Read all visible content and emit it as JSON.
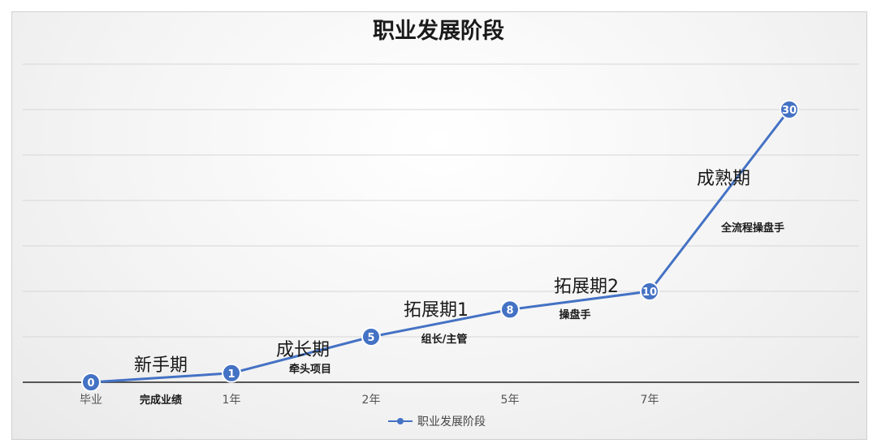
{
  "chart_data": {
    "type": "line",
    "title": "职业发展阶段",
    "x": [
      "毕业",
      "1年",
      "2年",
      "5年",
      "7年",
      ""
    ],
    "series": [
      {
        "name": "职业发展阶段",
        "values": [
          0,
          1,
          5,
          8,
          10,
          30
        ],
        "color": "#4472c4"
      }
    ],
    "data_labels": [
      "0",
      "1",
      "5",
      "8",
      "10",
      "30"
    ],
    "ylim": [
      0,
      35
    ],
    "grid": true,
    "legend": "bottom",
    "stages": [
      {
        "name": "新手期",
        "desc": "完成业绩"
      },
      {
        "name": "成长期",
        "desc": "牵头项目"
      },
      {
        "name": "拓展期1",
        "desc": "组长/主管"
      },
      {
        "name": "拓展期2",
        "desc": "操盘手"
      },
      {
        "name": "成熟期",
        "desc": "全流程操盘手"
      }
    ]
  }
}
